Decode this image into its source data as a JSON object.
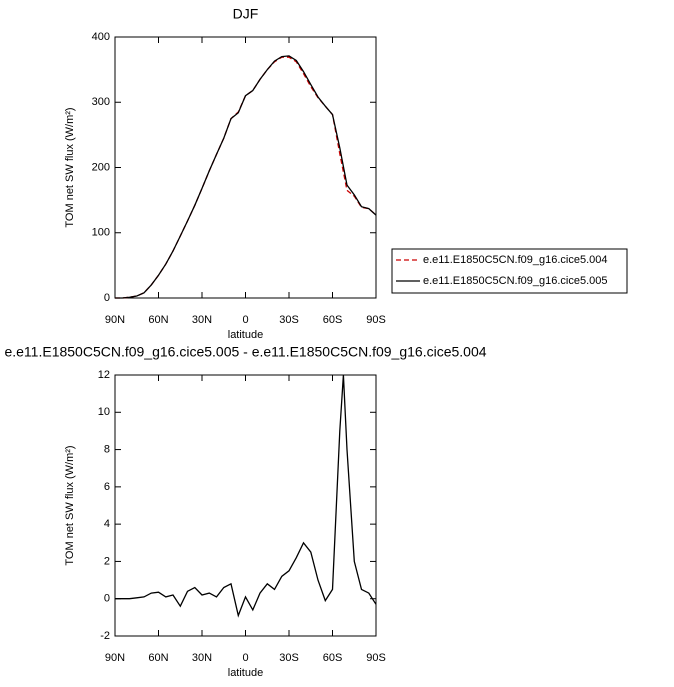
{
  "chart_data": [
    {
      "type": "line",
      "title": "DJF",
      "xlabel": "latitude",
      "ylabel": "TOM net SW flux (W/m²)",
      "x": [
        90,
        85,
        80,
        75,
        70,
        65,
        60,
        55,
        50,
        45,
        40,
        35,
        30,
        25,
        20,
        15,
        10,
        5,
        0,
        -5,
        -10,
        -15,
        -20,
        -25,
        -30,
        -35,
        -40,
        -45,
        -50,
        -55,
        -60,
        -65,
        -70,
        -75,
        -80,
        -85,
        -90
      ],
      "series": [
        {
          "name": "e.e11.E1850C5CN.f09_g16.cice5.004",
          "color": "#cc0000",
          "dash": true,
          "values": [
            0,
            0,
            1,
            3,
            8,
            20,
            35,
            52,
            72,
            95,
            118,
            142,
            168,
            195,
            220,
            245,
            275,
            285,
            310,
            318,
            335,
            350,
            362,
            369,
            369,
            362,
            344,
            324,
            307,
            294,
            281,
            221,
            165,
            156,
            139,
            137,
            127
          ]
        },
        {
          "name": "e.e11.E1850C5CN.f09_g16.cice5.005",
          "color": "#000000",
          "dash": false,
          "values": [
            0,
            0,
            1,
            3,
            8,
            20,
            35,
            52,
            72,
            95,
            118,
            142,
            168,
            195,
            220,
            245,
            275,
            284,
            310,
            318,
            335,
            350,
            363,
            370,
            371,
            364,
            347,
            327,
            308,
            294,
            281,
            230,
            173,
            158,
            140,
            137,
            127
          ]
        }
      ],
      "xlim": [
        90,
        -90
      ],
      "xticks": [
        {
          "value": 90,
          "label": "90N"
        },
        {
          "value": 60,
          "label": "60N"
        },
        {
          "value": 30,
          "label": "30N"
        },
        0,
        {
          "value": -30,
          "label": "30S"
        },
        {
          "value": -60,
          "label": "60S"
        },
        {
          "value": -90,
          "label": "90S"
        }
      ],
      "ylim": [
        0,
        400
      ],
      "yticks": [
        0,
        100,
        200,
        300,
        400
      ],
      "legend": "right"
    },
    {
      "type": "line",
      "title": "e.e11.E1850C5CN.f09_g16.cice5.005 - e.e11.E1850C5CN.f09_g16.cice5.004",
      "xlabel": "latitude",
      "ylabel": "TOM net SW flux (W/m²)",
      "x": [
        90,
        85,
        80,
        75,
        70,
        65,
        60,
        55,
        50,
        45,
        40,
        35,
        30,
        25,
        20,
        15,
        10,
        5,
        0,
        -5,
        -10,
        -15,
        -20,
        -25,
        -30,
        -35,
        -40,
        -45,
        -50,
        -55,
        -60,
        -65,
        -67.5,
        -70,
        -75,
        -80,
        -85,
        -90
      ],
      "series": [
        {
          "color": "#000000",
          "values": [
            0,
            0,
            0,
            0.05,
            0.1,
            0.3,
            0.35,
            0.1,
            0.2,
            -0.4,
            0.4,
            0.6,
            0.2,
            0.3,
            0.1,
            0.6,
            0.8,
            -0.9,
            0.1,
            -0.6,
            0.3,
            0.8,
            0.5,
            1.2,
            1.5,
            2.2,
            3.0,
            2.5,
            1.0,
            -0.1,
            0.5,
            9.0,
            12,
            8,
            2,
            0.5,
            0.3,
            -0.3
          ]
        }
      ],
      "xlim": [
        90,
        -90
      ],
      "xticks": [
        {
          "value": 90,
          "label": "90N"
        },
        {
          "value": 60,
          "label": "60N"
        },
        {
          "value": 30,
          "label": "30N"
        },
        0,
        {
          "value": -30,
          "label": "30S"
        },
        {
          "value": -60,
          "label": "60S"
        },
        {
          "value": -90,
          "label": "90S"
        }
      ],
      "ylim": [
        -2,
        12
      ],
      "yticks": [
        -2,
        0,
        2,
        4,
        6,
        8,
        10,
        12
      ]
    }
  ]
}
